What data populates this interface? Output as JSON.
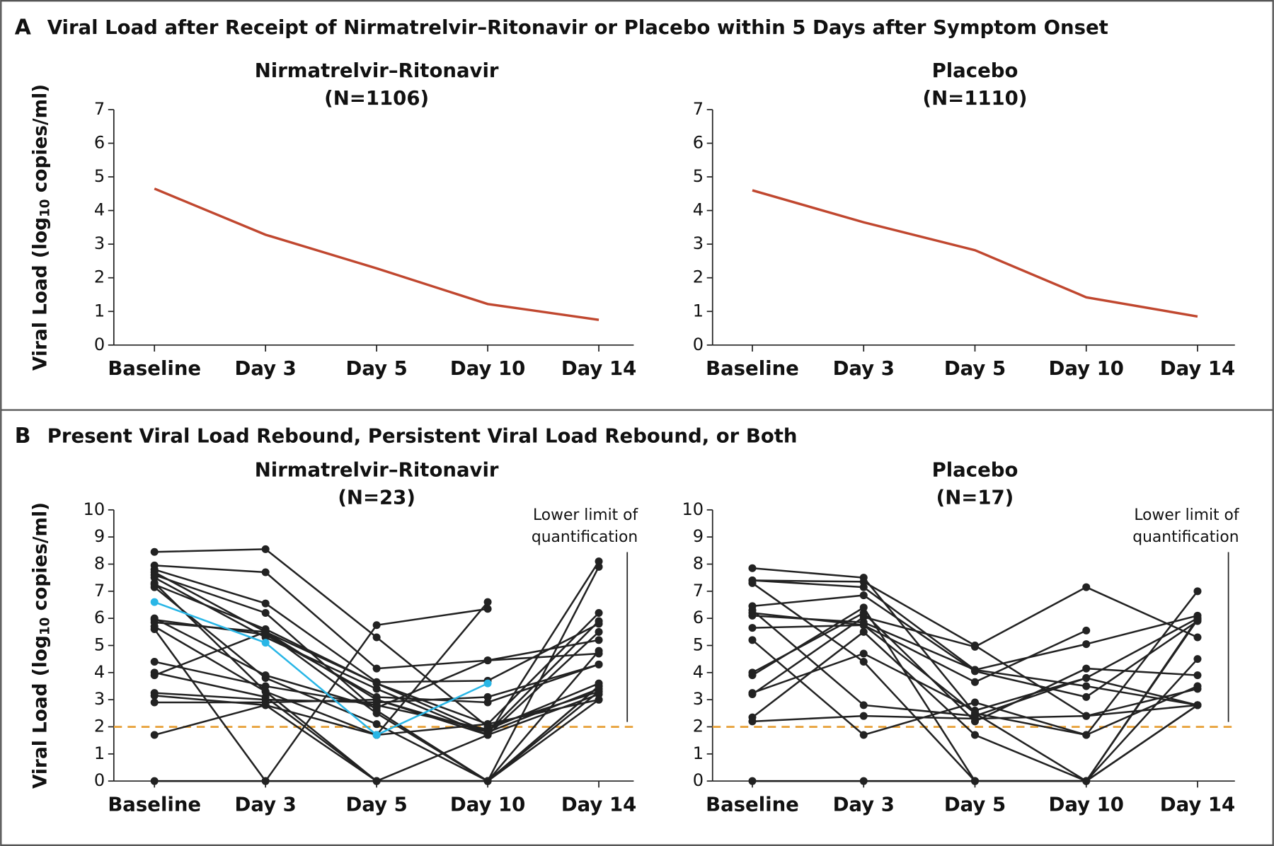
{
  "panels": [
    {
      "letter": "A",
      "heading": "Viral Load after Receipt of Nirmatrelvir–Ritonavir or Placebo within 5 Days after Symptom Onset"
    },
    {
      "letter": "B",
      "heading": "Present Viral Load Rebound, Persistent Viral Load Rebound, or Both"
    }
  ],
  "chart_data": [
    {
      "type": "line",
      "title": "Nirmatrelvir–Ritonavir",
      "subtitle": "(N=1106)",
      "y_label": [
        "Viral Load (log",
        "10",
        " copies/ml)"
      ],
      "categories": [
        "Baseline",
        "Day 3",
        "Day 5",
        "Day 10",
        "Day 14"
      ],
      "ylim": [
        0,
        7
      ],
      "yticks": [
        0,
        1,
        2,
        3,
        4,
        5,
        6,
        7
      ],
      "markers": false,
      "series": [
        {
          "color": "#c0472f",
          "values": [
            4.65,
            3.28,
            2.28,
            1.22,
            0.75
          ]
        }
      ]
    },
    {
      "type": "line",
      "title": "Placebo",
      "subtitle": "(N=1110)",
      "categories": [
        "Baseline",
        "Day 3",
        "Day 5",
        "Day 10",
        "Day 14"
      ],
      "ylim": [
        0,
        7
      ],
      "yticks": [
        0,
        1,
        2,
        3,
        4,
        5,
        6,
        7
      ],
      "markers": false,
      "series": [
        {
          "color": "#c0472f",
          "values": [
            4.6,
            3.65,
            2.82,
            1.42,
            0.85
          ]
        }
      ]
    },
    {
      "type": "line",
      "title": "Nirmatrelvir–Ritonavir",
      "subtitle": "(N=23)",
      "y_label": [
        "Viral Load (log",
        "10",
        " copies/ml)"
      ],
      "categories": [
        "Baseline",
        "Day 3",
        "Day 5",
        "Day 10",
        "Day 14"
      ],
      "ylim": [
        0,
        10
      ],
      "yticks": [
        0,
        1,
        2,
        3,
        4,
        5,
        6,
        7,
        8,
        9,
        10
      ],
      "markers": true,
      "reference_line": {
        "value": 2,
        "color": "#e8a33d",
        "label": [
          "Lower limit of",
          "quantification"
        ]
      },
      "series": [
        {
          "color": "#222",
          "values": [
            8.45,
            8.55,
            5.3,
            2.0,
            3.3
          ]
        },
        {
          "color": "#222",
          "values": [
            7.95,
            7.7,
            4.15,
            4.45,
            5.2
          ]
        },
        {
          "color": "#222",
          "values": [
            7.8,
            6.55,
            3.65,
            3.7,
            5.8
          ]
        },
        {
          "color": "#222",
          "values": [
            7.7,
            5.5,
            3.0,
            1.7,
            8.1
          ]
        },
        {
          "color": "#222",
          "values": [
            7.6,
            6.2,
            2.6,
            0,
            7.9
          ]
        },
        {
          "color": "#222",
          "values": [
            7.25,
            5.6,
            3.6,
            2.1,
            6.2
          ]
        },
        {
          "color": "#222",
          "values": [
            7.15,
            3.8,
            2.1,
            0,
            3.5
          ]
        },
        {
          "color": "#222",
          "values": [
            5.95,
            5.4,
            3.1,
            2.9,
            4.3
          ]
        },
        {
          "color": "#222",
          "values": [
            5.85,
            5.5,
            3.6,
            1.8,
            5.9
          ]
        },
        {
          "color": "#222",
          "values": [
            5.7,
            3.3,
            1.7,
            6.6,
            null
          ]
        },
        {
          "color": "#222",
          "values": [
            5.6,
            0,
            5.75,
            6.35,
            null
          ]
        },
        {
          "color": "#222",
          "values": [
            4.4,
            3.5,
            2.8,
            1.9,
            3.6
          ]
        },
        {
          "color": "#222",
          "values": [
            4.0,
            3.1,
            0,
            1.7,
            3.2
          ]
        },
        {
          "color": "#222",
          "values": [
            3.9,
            5.5,
            2.5,
            0,
            4.8
          ]
        },
        {
          "color": "#222",
          "values": [
            3.25,
            3.0,
            2.9,
            3.1,
            4.3
          ]
        },
        {
          "color": "#222",
          "values": [
            3.15,
            2.8,
            1.7,
            2.1,
            3.0
          ]
        },
        {
          "color": "#222",
          "values": [
            2.9,
            2.9,
            3.0,
            1.8,
            3.4
          ]
        },
        {
          "color": "#222",
          "values": [
            1.7,
            2.8,
            0,
            0,
            3.3
          ]
        },
        {
          "color": "#222",
          "values": [
            0,
            0,
            0,
            0,
            3.5
          ]
        },
        {
          "color": "#222",
          "values": [
            7.5,
            5.3,
            3.4,
            1.7,
            5.5
          ]
        },
        {
          "color": "#222",
          "values": [
            6.0,
            3.9,
            2.7,
            4.45,
            4.7
          ]
        },
        {
          "color": "#222",
          "values": [
            7.3,
            3.3,
            0,
            0,
            3.0
          ]
        },
        {
          "color": "#29b6e6",
          "values": [
            6.6,
            5.1,
            1.7,
            3.6,
            null
          ]
        }
      ]
    },
    {
      "type": "line",
      "title": "Placebo",
      "subtitle": "(N=17)",
      "categories": [
        "Baseline",
        "Day 3",
        "Day 5",
        "Day 10",
        "Day 14"
      ],
      "ylim": [
        0,
        10
      ],
      "yticks": [
        0,
        1,
        2,
        3,
        4,
        5,
        6,
        7,
        8,
        9,
        10
      ],
      "markers": true,
      "reference_line": {
        "value": 2,
        "color": "#e8a33d",
        "label": [
          "Lower limit of",
          "quantification"
        ]
      },
      "series": [
        {
          "color": "#222",
          "values": [
            7.85,
            7.5,
            2.5,
            1.7,
            7.0
          ]
        },
        {
          "color": "#222",
          "values": [
            7.4,
            7.35,
            5.0,
            2.4,
            2.8
          ]
        },
        {
          "color": "#222",
          "values": [
            7.4,
            7.15,
            4.1,
            5.05,
            6.1
          ]
        },
        {
          "color": "#222",
          "values": [
            6.45,
            6.85,
            4.05,
            3.1,
            5.9
          ]
        },
        {
          "color": "#222",
          "values": [
            6.2,
            5.75,
            2.5,
            0,
            4.5
          ]
        },
        {
          "color": "#222",
          "values": [
            6.1,
            5.85,
            4.1,
            3.5,
            2.8
          ]
        },
        {
          "color": "#222",
          "values": [
            5.65,
            5.75,
            3.65,
            5.55,
            null
          ]
        },
        {
          "color": "#222",
          "values": [
            5.2,
            1.7,
            2.9,
            1.7,
            3.5
          ]
        },
        {
          "color": "#222",
          "values": [
            4.0,
            6.2,
            2.2,
            4.15,
            3.9
          ]
        },
        {
          "color": "#222",
          "values": [
            3.9,
            6.4,
            0,
            0,
            6.0
          ]
        },
        {
          "color": "#222",
          "values": [
            3.25,
            4.7,
            2.6,
            3.8,
            2.8
          ]
        },
        {
          "color": "#222",
          "values": [
            3.2,
            6.05,
            4.95,
            7.15,
            5.3
          ]
        },
        {
          "color": "#222",
          "values": [
            2.35,
            5.5,
            1.7,
            0,
            5.95
          ]
        },
        {
          "color": "#222",
          "values": [
            2.2,
            2.4,
            2.3,
            2.4,
            3.4
          ]
        },
        {
          "color": "#222",
          "values": [
            0,
            0,
            0,
            0,
            2.8
          ]
        },
        {
          "color": "#222",
          "values": [
            6.3,
            2.8,
            2.4,
            3.8,
            6.0
          ]
        },
        {
          "color": "#222",
          "values": [
            7.3,
            4.4,
            0,
            0,
            2.8
          ]
        }
      ]
    }
  ]
}
